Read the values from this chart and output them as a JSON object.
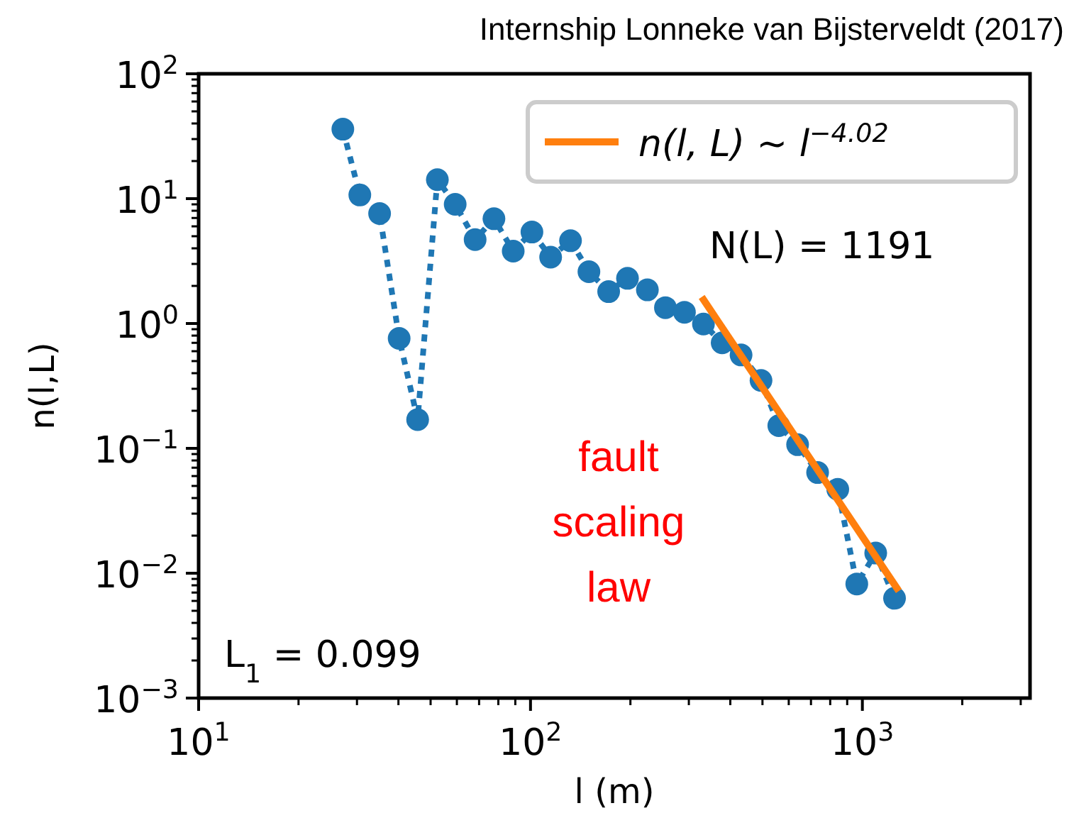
{
  "chart_data": {
    "type": "line",
    "title": "Internship Lonneke van Bijsterveldt (2017)",
    "xlabel": "l (m)",
    "ylabel": "n(l,L)",
    "log": "xy",
    "xlim": [
      10,
      3200
    ],
    "ylim": [
      0.001,
      100
    ],
    "xticks": [
      {
        "value": 10,
        "label": "10$^{1}$"
      },
      {
        "value": 100,
        "label": "10$^{2}$"
      },
      {
        "value": 1000,
        "label": "10$^{3}$"
      }
    ],
    "yticks": [
      {
        "value": 0.001,
        "label": "10$^{−3}$"
      },
      {
        "value": 0.01,
        "label": "10$^{−2}$"
      },
      {
        "value": 0.1,
        "label": "10$^{−1}$"
      },
      {
        "value": 1,
        "label": "10$^{0}$"
      },
      {
        "value": 10,
        "label": "10$^{1}$"
      },
      {
        "value": 100,
        "label": "10$^{2}$"
      }
    ],
    "grid": false,
    "legend": "top right",
    "series": [
      {
        "color": "#1f77b4",
        "marker": "circle",
        "line_style": "dotted",
        "x": [
          27.2,
          30.6,
          35.1,
          40.2,
          45.7,
          52.4,
          59.3,
          68.1,
          77.6,
          88.7,
          101,
          115,
          132,
          150,
          172,
          196,
          225,
          255,
          291,
          332,
          378,
          431,
          495,
          560,
          638,
          733,
          843,
          962,
          1097,
          1250
        ],
        "values": [
          36,
          10.7,
          7.6,
          0.76,
          0.17,
          14.2,
          9.0,
          4.7,
          6.9,
          3.8,
          5.4,
          3.4,
          4.6,
          2.6,
          1.8,
          2.3,
          1.86,
          1.34,
          1.23,
          0.99,
          0.7,
          0.56,
          0.35,
          0.152,
          0.107,
          0.064,
          0.047,
          0.0082,
          0.0145,
          0.0063
        ]
      },
      {
        "name": "n(l, L) ~ l$^{−4.02}$",
        "color": "#ff7f0e",
        "marker": "none",
        "line_style": "solid",
        "x": [
          328,
          1288
        ],
        "values": [
          1.63,
          0.0072
        ]
      }
    ],
    "annotations": [
      "N(L) = 1191",
      "L$_{1}$ = 0.099",
      "fault\nscaling\nlaw"
    ]
  }
}
